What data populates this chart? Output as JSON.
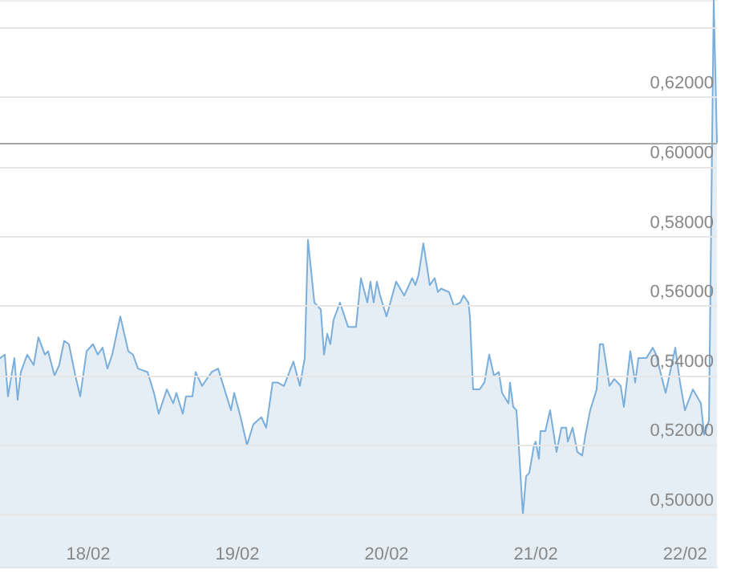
{
  "chart_data": {
    "type": "area",
    "x": [
      "--02-17T09:49",
      "--02-17T10:35",
      "--02-17T11:06",
      "--02-17T12:08",
      "--02-17T12:39",
      "--02-17T13:10",
      "--02-17T14:12",
      "--02-17T15:14",
      "--02-17T16:00",
      "--02-17T17:02",
      "--02-17T17:33",
      "--02-17T18:35",
      "--02-17T19:21",
      "--02-17T20:08",
      "--02-17T20:54",
      "--02-17T21:56",
      "--02-17T22:43",
      "--02-17T23:45",
      "--02-18T00:46",
      "--02-18T01:33",
      "--02-18T02:19",
      "--02-18T03:06",
      "--02-18T03:52",
      "--02-18T05:10",
      "--02-18T06:27",
      "--02-18T07:13",
      "--02-18T08:00",
      "--02-18T09:33",
      "--02-18T10:35",
      "--02-18T11:21",
      "--02-18T12:39",
      "--02-18T13:40",
      "--02-18T14:11",
      "--02-18T15:13",
      "--02-18T15:44",
      "--02-18T16:46",
      "--02-18T17:17",
      "--02-18T18:19",
      "--02-18T19:52",
      "--02-18T20:54",
      "--02-18T21:56",
      "--02-18T22:58",
      "--02-18T23:29",
      "--02-19T00:31",
      "--02-19T01:33",
      "--02-19T02:34",
      "--02-19T03:52",
      "--02-19T04:38",
      "--02-19T05:40",
      "--02-19T06:27",
      "--02-19T07:29",
      "--02-19T09:01",
      "--02-19T10:03",
      "--02-19T10:50",
      "--02-19T11:21",
      "--02-19T12:23",
      "--02-19T13:25",
      "--02-19T13:56",
      "--02-19T14:27",
      "--02-19T14:57",
      "--02-19T15:28",
      "--02-19T16:30",
      "--02-19T17:48",
      "--02-19T19:05",
      "--02-19T19:52",
      "--02-19T20:54",
      "--02-19T21:24",
      "--02-19T21:55",
      "--02-19T22:26",
      "--02-19T22:57",
      "--02-19T23:59",
      "--02-20T01:32",
      "--02-20T02:50",
      "--02-20T04:07",
      "--02-20T04:38",
      "--02-20T05:09",
      "--02-20T05:55",
      "--02-20T06:57",
      "--02-20T07:44",
      "--02-20T08:15",
      "--02-20T08:46",
      "--02-20T10:03",
      "--02-20T10:49",
      "--02-20T11:51",
      "--02-20T12:22",
      "--02-20T13:09",
      "--02-20T13:24",
      "--02-20T13:55",
      "--02-20T14:57",
      "--02-20T15:44",
      "--02-20T16:30",
      "--02-20T17:16",
      "--02-20T18:03",
      "--02-20T18:34",
      "--02-20T19:36",
      "--02-20T19:51",
      "--02-20T20:22",
      "--02-20T20:53",
      "--02-20T21:09",
      "--02-20T21:55",
      "--02-20T22:26",
      "--02-20T22:57",
      "--02-20T23:43",
      "--02-20T23:59",
      "--02-21T00:30",
      "--02-21T00:45",
      "--02-21T01:32",
      "--02-21T02:18",
      "--02-21T03:20",
      "--02-21T04:07",
      "--02-21T04:53",
      "--02-21T05:09",
      "--02-21T05:55",
      "--02-21T06:41",
      "--02-21T07:28",
      "--02-21T07:59",
      "--02-21T08:45",
      "--02-21T09:47",
      "--02-21T10:18",
      "--02-21T10:49",
      "--02-21T11:51",
      "--02-21T12:37",
      "--02-21T13:39",
      "--02-21T14:10",
      "--02-21T15:12",
      "--02-21T15:59",
      "--02-21T16:30",
      "--02-21T17:47",
      "--02-21T18:49",
      "--02-21T19:20",
      "--02-21T20:53",
      "--02-21T22:26",
      "--02-21T23:12",
      "--02-21T23:59",
      "--02-22T01:16",
      "--02-22T02:33",
      "--02-22T03:04",
      "--02-22T03:51",
      "--02-22T04:37",
      "--02-22T05:08"
    ],
    "series": [
      {
        "color": "#7aaedb",
        "values": [
          0.545,
          0.546,
          0.534,
          0.545,
          0.533,
          0.541,
          0.546,
          0.543,
          0.551,
          0.546,
          0.547,
          0.54,
          0.543,
          0.55,
          0.549,
          0.54,
          0.534,
          0.547,
          0.549,
          0.546,
          0.548,
          0.542,
          0.546,
          0.557,
          0.547,
          0.546,
          0.542,
          0.541,
          0.535,
          0.529,
          0.536,
          0.532,
          0.535,
          0.529,
          0.534,
          0.534,
          0.541,
          0.537,
          0.541,
          0.542,
          0.536,
          0.53,
          0.535,
          0.528,
          0.52,
          0.526,
          0.528,
          0.525,
          0.538,
          0.538,
          0.537,
          0.544,
          0.537,
          0.545,
          0.579,
          0.561,
          0.559,
          0.546,
          0.552,
          0.549,
          0.556,
          0.561,
          0.554,
          0.554,
          0.568,
          0.561,
          0.567,
          0.561,
          0.567,
          0.563,
          0.557,
          0.567,
          0.563,
          0.568,
          0.566,
          0.569,
          0.578,
          0.566,
          0.568,
          0.564,
          0.565,
          0.564,
          0.56,
          0.561,
          0.563,
          0.561,
          0.557,
          0.536,
          0.536,
          0.538,
          0.546,
          0.54,
          0.541,
          0.535,
          0.532,
          0.538,
          0.531,
          0.53,
          0.523,
          0.5,
          0.511,
          0.512,
          0.52,
          0.521,
          0.516,
          0.524,
          0.524,
          0.53,
          0.518,
          0.525,
          0.525,
          0.521,
          0.525,
          0.518,
          0.517,
          0.523,
          0.53,
          0.536,
          0.549,
          0.549,
          0.537,
          0.539,
          0.537,
          0.531,
          0.547,
          0.538,
          0.545,
          0.545,
          0.548,
          0.546,
          0.535,
          0.548,
          0.538,
          0.53,
          0.536,
          0.532,
          0.523,
          0.527,
          0.648,
          0.607
        ]
      }
    ],
    "xlim": [
      "--02-17T09:49",
      "--02-22T05:08"
    ],
    "xticks": [
      {
        "value": "--02-18",
        "label": "18/02"
      },
      {
        "value": "--02-19",
        "label": "19/02"
      },
      {
        "value": "--02-20",
        "label": "20/02"
      },
      {
        "value": "--02-21",
        "label": "21/02"
      },
      {
        "value": "--02-22",
        "label": "22/02"
      }
    ],
    "ylim": [
      0.485,
      0.648
    ],
    "yticks": [
      {
        "value": 0.5,
        "label": "0,50000"
      },
      {
        "value": 0.52,
        "label": "0,52000"
      },
      {
        "value": 0.54,
        "label": "0,54000"
      },
      {
        "value": 0.56,
        "label": "0,56000"
      },
      {
        "value": 0.58,
        "label": "0,58000"
      },
      {
        "value": 0.6,
        "label": "0,60000"
      },
      {
        "value": 0.62,
        "label": "0,62000"
      },
      {
        "value": 0.64,
        "label": null
      }
    ],
    "ref_lines": [
      {
        "axis": "y",
        "value": 0.607,
        "color": "#a6a6a6"
      }
    ],
    "grid": "y",
    "marker": "none",
    "line_style": "solid"
  }
}
